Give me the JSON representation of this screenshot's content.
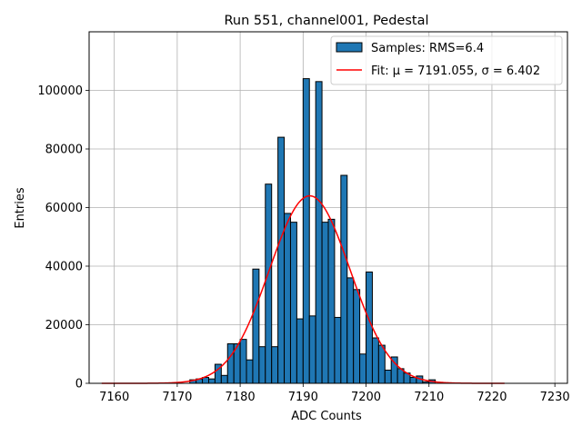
{
  "chart_data": {
    "type": "bar",
    "title": "Run 551, channel001, Pedestal",
    "xlabel": "ADC Counts",
    "ylabel": "Entries",
    "xlim": [
      7156,
      7232
    ],
    "ylim": [
      0,
      120000
    ],
    "xticks": [
      7160,
      7170,
      7180,
      7190,
      7200,
      7210,
      7220,
      7230
    ],
    "yticks": [
      0,
      20000,
      40000,
      60000,
      80000,
      100000
    ],
    "grid": true,
    "legend_placement": "top-right",
    "colors": {
      "bars": "#1f77b4",
      "bar_edge": "#000000",
      "fit": "#ff0000",
      "grid": "#b0b0b0"
    },
    "histogram": {
      "name": "Samples: RMS=6.4",
      "bins": [
        {
          "x": 7172,
          "y": 1200
        },
        {
          "x": 7173,
          "y": 1500
        },
        {
          "x": 7174,
          "y": 2000
        },
        {
          "x": 7175,
          "y": 1500
        },
        {
          "x": 7176,
          "y": 6500
        },
        {
          "x": 7177,
          "y": 2700
        },
        {
          "x": 7178,
          "y": 13500
        },
        {
          "x": 7179,
          "y": 13500
        },
        {
          "x": 7180,
          "y": 15000
        },
        {
          "x": 7181,
          "y": 8000
        },
        {
          "x": 7182,
          "y": 39000
        },
        {
          "x": 7183,
          "y": 12500
        },
        {
          "x": 7184,
          "y": 68000
        },
        {
          "x": 7185,
          "y": 12500
        },
        {
          "x": 7186,
          "y": 84000
        },
        {
          "x": 7187,
          "y": 58000
        },
        {
          "x": 7188,
          "y": 55000
        },
        {
          "x": 7189,
          "y": 22000
        },
        {
          "x": 7190,
          "y": 104000
        },
        {
          "x": 7191,
          "y": 23000
        },
        {
          "x": 7192,
          "y": 103000
        },
        {
          "x": 7193,
          "y": 55000
        },
        {
          "x": 7194,
          "y": 56000
        },
        {
          "x": 7195,
          "y": 22500
        },
        {
          "x": 7196,
          "y": 71000
        },
        {
          "x": 7197,
          "y": 36000
        },
        {
          "x": 7198,
          "y": 32000
        },
        {
          "x": 7199,
          "y": 10000
        },
        {
          "x": 7200,
          "y": 38000
        },
        {
          "x": 7201,
          "y": 15500
        },
        {
          "x": 7202,
          "y": 13000
        },
        {
          "x": 7203,
          "y": 4500
        },
        {
          "x": 7204,
          "y": 9000
        },
        {
          "x": 7205,
          "y": 5000
        },
        {
          "x": 7206,
          "y": 3500
        },
        {
          "x": 7207,
          "y": 2000
        },
        {
          "x": 7208,
          "y": 2500
        },
        {
          "x": 7209,
          "y": 500
        },
        {
          "x": 7210,
          "y": 1200
        }
      ]
    },
    "fit": {
      "name": "Fit: μ = 7191.055, σ = 6.402",
      "mu": 7191.055,
      "sigma": 6.402,
      "amplitude": 64000,
      "x_range": [
        7158,
        7222
      ]
    }
  }
}
